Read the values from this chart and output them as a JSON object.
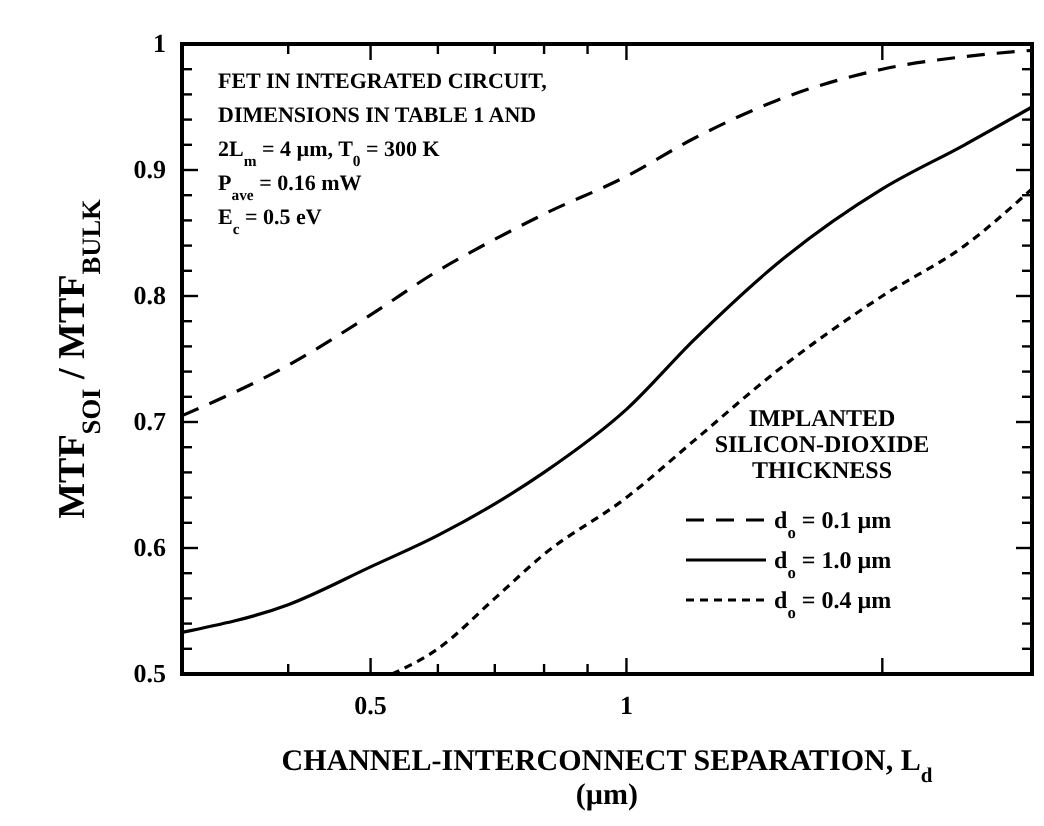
{
  "chart_data": {
    "type": "line",
    "xlabel": "CHANNEL-INTERCONNECT SEPARATION, L$_{d}$ (µm)",
    "ylabel": "MTF$_{SOI}$ / MTF$_{BULK}$",
    "log": "x",
    "xlim": [
      0.3,
      3
    ],
    "ylim": [
      0.5,
      1
    ],
    "xticks": [
      {
        "value": 0.3,
        "label": null
      },
      {
        "value": 0.4,
        "label": null
      },
      0.5,
      {
        "value": 0.6,
        "label": null
      },
      {
        "value": 0.7,
        "label": null
      },
      {
        "value": 0.8,
        "label": null
      },
      {
        "value": 0.9,
        "label": null
      },
      1,
      {
        "value": 2,
        "label": null
      },
      {
        "value": 3,
        "label": null
      }
    ],
    "yticks": [
      0.5,
      {
        "value": 0.52,
        "label": null
      },
      {
        "value": 0.54,
        "label": null
      },
      {
        "value": 0.56,
        "label": null
      },
      {
        "value": 0.58,
        "label": null
      },
      0.6,
      {
        "value": 0.62,
        "label": null
      },
      {
        "value": 0.64,
        "label": null
      },
      {
        "value": 0.66,
        "label": null
      },
      {
        "value": 0.68,
        "label": null
      },
      0.7,
      {
        "value": 0.72,
        "label": null
      },
      {
        "value": 0.74,
        "label": null
      },
      {
        "value": 0.76,
        "label": null
      },
      {
        "value": 0.78,
        "label": null
      },
      0.8,
      {
        "value": 0.82,
        "label": null
      },
      {
        "value": 0.84,
        "label": null
      },
      {
        "value": 0.86,
        "label": null
      },
      {
        "value": 0.88,
        "label": null
      },
      0.9,
      {
        "value": 0.92,
        "label": null
      },
      {
        "value": 0.94,
        "label": null
      },
      {
        "value": 0.96,
        "label": null
      },
      {
        "value": 0.98,
        "label": null
      },
      1
    ],
    "legend": "bottom right",
    "legend_title": "IMPLANTED SILICON-DIOXIDE THICKNESS",
    "grid": false,
    "marker": "none",
    "annotations": [
      "FET IN INTEGRATED CIRCUIT,",
      "DIMENSIONS IN TABLE 1 AND",
      "2L$_{m}$ = 4 µm,   T$_{0}$ = 300  K",
      "P$_{ave}$ = 0.16  mW",
      "E$_{c}$ = 0.5  eV"
    ],
    "series": [
      {
        "name": "d$_{o}$ = 0.1  µm",
        "color": "#000000",
        "line_style": "dashed",
        "x": [
          0.3,
          0.4,
          0.5,
          0.6,
          0.7,
          0.8,
          1,
          1.2,
          1.5,
          2,
          2.5,
          3
        ],
        "values": [
          0.705,
          0.745,
          0.785,
          0.82,
          0.845,
          0.865,
          0.895,
          0.925,
          0.955,
          0.98,
          0.99,
          0.995
        ]
      },
      {
        "name": "d$_{o}$ = 1.0  µm",
        "color": "#000000",
        "line_style": "solid",
        "x": [
          0.3,
          0.4,
          0.5,
          0.6,
          0.7,
          0.8,
          1,
          1.2,
          1.5,
          2,
          2.5,
          3
        ],
        "values": [
          0.533,
          0.555,
          0.585,
          0.61,
          0.635,
          0.66,
          0.71,
          0.765,
          0.825,
          0.885,
          0.92,
          0.95
        ]
      },
      {
        "name": "d$_{o}$ = 0.4  µm",
        "color": "#000000",
        "line_style": "dotted",
        "x": [
          0.53,
          0.6,
          0.7,
          0.8,
          1,
          1.2,
          1.5,
          2,
          2.5,
          3
        ],
        "values": [
          0.5,
          0.52,
          0.56,
          0.595,
          0.64,
          0.685,
          0.74,
          0.8,
          0.84,
          0.885
        ]
      }
    ]
  }
}
